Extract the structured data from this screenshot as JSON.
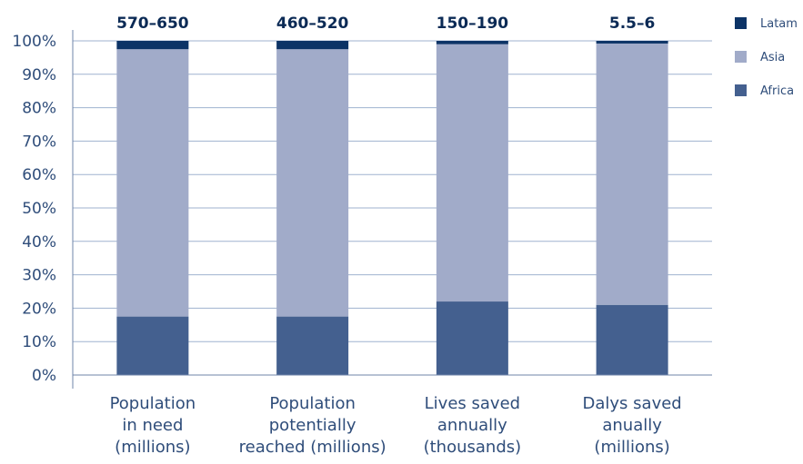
{
  "chart_data": {
    "type": "bar",
    "stacked": true,
    "categories": [
      [
        "Population",
        "in need",
        "(millions)"
      ],
      [
        "Population",
        "potentially",
        "reached (millions)"
      ],
      [
        "Lives saved",
        "annually",
        "(thousands)"
      ],
      [
        "Dalys saved",
        "anually",
        "(millions)"
      ]
    ],
    "totals": [
      "570–650",
      "460–520",
      "150–190",
      "5.5–6"
    ],
    "series": [
      {
        "name": "Africa",
        "color": "#44608f",
        "values": [
          17.5,
          17.5,
          22,
          21
        ]
      },
      {
        "name": "Asia",
        "color": "#a1abc9",
        "values": [
          80,
          80,
          77,
          78.2
        ]
      },
      {
        "name": "Latam",
        "color": "#0c3366",
        "values": [
          2.5,
          2.5,
          1,
          0.8
        ]
      }
    ],
    "legend_order": [
      "Latam",
      "Asia",
      "Africa"
    ],
    "ylim": [
      0,
      100
    ],
    "yticks": [
      "0%",
      "10%",
      "20%",
      "30%",
      "40%",
      "50%",
      "60%",
      "70%",
      "80%",
      "90%",
      "100%"
    ],
    "grid": true,
    "legend_position": "top-right"
  }
}
